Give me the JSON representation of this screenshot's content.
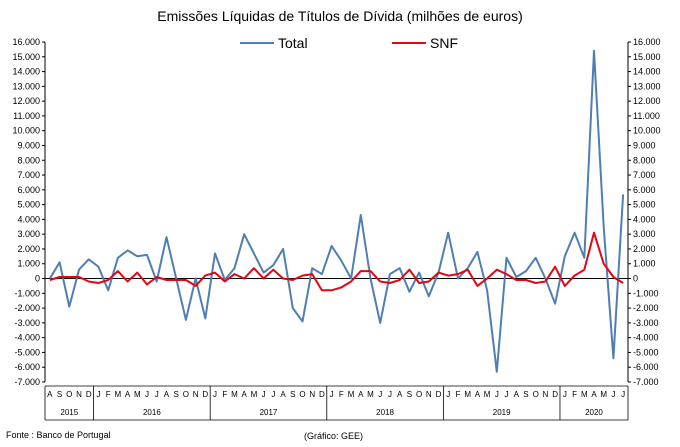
{
  "chart_data": {
    "type": "line",
    "title": "Emissões Líquidas de Títulos de Dívida (milhões de euros)",
    "ylim": [
      -7000,
      16000
    ],
    "y_ticks": [
      16000,
      15000,
      14000,
      13000,
      12000,
      11000,
      10000,
      9000,
      8000,
      7000,
      6000,
      5000,
      4000,
      3000,
      2000,
      1000,
      0,
      -1000,
      -2000,
      -3000,
      -4000,
      -5000,
      -6000,
      -7000
    ],
    "y_tick_labels": [
      "16.000",
      "15.000",
      "14.000",
      "13.000",
      "12.000",
      "11.000",
      "10.000",
      "9.000",
      "8.000",
      "7.000",
      "6.000",
      "5.000",
      "4.000",
      "3.000",
      "2.000",
      "1.000",
      "0",
      "-1.000",
      "-2.000",
      "-3.000",
      "-4.000",
      "-5.000",
      "-6.000",
      "-7.000"
    ],
    "x_month_labels": [
      "A",
      "S",
      "O",
      "N",
      "D",
      "J",
      "F",
      "M",
      "A",
      "M",
      "J",
      "J",
      "A",
      "S",
      "O",
      "N",
      "D",
      "J",
      "F",
      "M",
      "A",
      "M",
      "J",
      "J",
      "A",
      "S",
      "O",
      "N",
      "D",
      "J",
      "F",
      "M",
      "A",
      "M",
      "J",
      "J",
      "A",
      "S",
      "O",
      "N",
      "D",
      "J",
      "F",
      "M",
      "A",
      "M",
      "J",
      "J",
      "A",
      "S",
      "O",
      "N",
      "D",
      "J",
      "F",
      "M",
      "A",
      "M",
      "J",
      "J"
    ],
    "years": [
      {
        "label": "2015",
        "start": 0,
        "count": 5
      },
      {
        "label": "2016",
        "start": 5,
        "count": 12
      },
      {
        "label": "2017",
        "start": 17,
        "count": 12
      },
      {
        "label": "2018",
        "start": 29,
        "count": 12
      },
      {
        "label": "2019",
        "start": 41,
        "count": 12
      },
      {
        "label": "2020",
        "start": 53,
        "count": 7
      }
    ],
    "grid": false,
    "legend_position": "top",
    "series": [
      {
        "name": "Total",
        "color": "#4F7EB3",
        "values": [
          0,
          1100,
          -1900,
          600,
          1300,
          800,
          -800,
          1400,
          1900,
          1500,
          1600,
          -200,
          2800,
          0,
          -2800,
          0,
          -2700,
          1700,
          -100,
          700,
          3000,
          1700,
          400,
          900,
          2000,
          -2000,
          -2900,
          700,
          300,
          2200,
          1200,
          0,
          4300,
          0,
          -3000,
          300,
          700,
          -900,
          400,
          -1200,
          400,
          3100,
          0,
          700,
          1800,
          -800,
          -6300,
          1400,
          100,
          500,
          1400,
          0,
          -1700,
          1500,
          3100,
          1400,
          15400,
          3500,
          -5400,
          5700
        ]
      },
      {
        "name": "SNF",
        "color": "#E30613",
        "values": [
          -100,
          100,
          100,
          100,
          -200,
          -300,
          -100,
          500,
          -200,
          400,
          -400,
          100,
          -100,
          -100,
          -100,
          -500,
          200,
          400,
          -200,
          300,
          0,
          700,
          0,
          600,
          0,
          -100,
          200,
          300,
          -800,
          -800,
          -600,
          -200,
          500,
          500,
          -200,
          -300,
          -100,
          600,
          -300,
          -200,
          400,
          200,
          300,
          600,
          -500,
          0,
          600,
          300,
          -100,
          -100,
          -300,
          -200,
          800,
          -500,
          200,
          600,
          3100,
          1000,
          100,
          -300
        ]
      }
    ]
  },
  "footer": {
    "source": "Fonte : Banco de Portugal",
    "credit": "(Gráfico: GEE)"
  }
}
